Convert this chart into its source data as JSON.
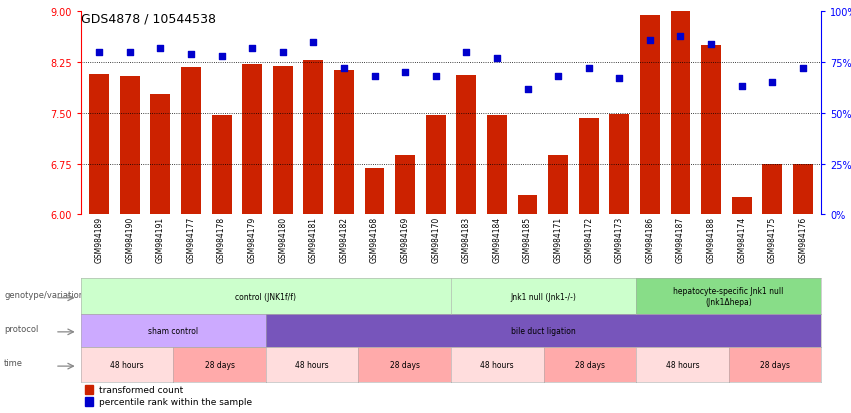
{
  "title": "GDS4878 / 10544538",
  "samples": [
    "GSM984189",
    "GSM984190",
    "GSM984191",
    "GSM984177",
    "GSM984178",
    "GSM984179",
    "GSM984180",
    "GSM984181",
    "GSM984182",
    "GSM984168",
    "GSM984169",
    "GSM984170",
    "GSM984183",
    "GSM984184",
    "GSM984185",
    "GSM984171",
    "GSM984172",
    "GSM984173",
    "GSM984186",
    "GSM984187",
    "GSM984188",
    "GSM984174",
    "GSM984175",
    "GSM984176"
  ],
  "bar_values": [
    8.08,
    8.05,
    7.78,
    8.18,
    7.47,
    8.22,
    8.2,
    8.28,
    8.14,
    6.68,
    6.88,
    7.47,
    8.06,
    7.47,
    6.28,
    6.88,
    7.42,
    7.48,
    8.95,
    9.05,
    8.5,
    6.25,
    6.75,
    6.75
  ],
  "dot_values": [
    80,
    80,
    82,
    79,
    78,
    82,
    80,
    85,
    72,
    68,
    70,
    68,
    80,
    77,
    62,
    68,
    72,
    67,
    86,
    88,
    84,
    63,
    65,
    72
  ],
  "ylim_left": [
    6,
    9
  ],
  "ylim_right": [
    0,
    100
  ],
  "yticks_left": [
    6,
    6.75,
    7.5,
    8.25,
    9
  ],
  "yticks_right": [
    0,
    25,
    50,
    75,
    100
  ],
  "hlines": [
    6.75,
    7.5,
    8.25
  ],
  "bar_color": "#cc2200",
  "dot_color": "#0000cc",
  "genotype_groups": [
    {
      "label": "control (JNK1f/f)",
      "start": 0,
      "end": 12,
      "color": "#ccffcc"
    },
    {
      "label": "Jnk1 null (Jnk1-/-)",
      "start": 12,
      "end": 18,
      "color": "#ccffcc"
    },
    {
      "label": "hepatocyte-specific Jnk1 null\n(Jnk1Δhepa)",
      "start": 18,
      "end": 24,
      "color": "#88dd88"
    }
  ],
  "protocol_groups": [
    {
      "label": "sham control",
      "start": 0,
      "end": 6,
      "color": "#ccaaff"
    },
    {
      "label": "bile duct ligation",
      "start": 6,
      "end": 24,
      "color": "#7755bb"
    }
  ],
  "time_groups": [
    {
      "label": "48 hours",
      "start": 0,
      "end": 3,
      "color": "#ffdddd"
    },
    {
      "label": "28 days",
      "start": 3,
      "end": 6,
      "color": "#ffaaaa"
    },
    {
      "label": "48 hours",
      "start": 6,
      "end": 9,
      "color": "#ffdddd"
    },
    {
      "label": "28 days",
      "start": 9,
      "end": 12,
      "color": "#ffaaaa"
    },
    {
      "label": "48 hours",
      "start": 12,
      "end": 15,
      "color": "#ffdddd"
    },
    {
      "label": "28 days",
      "start": 15,
      "end": 18,
      "color": "#ffaaaa"
    },
    {
      "label": "48 hours",
      "start": 18,
      "end": 21,
      "color": "#ffdddd"
    },
    {
      "label": "28 days",
      "start": 21,
      "end": 24,
      "color": "#ffaaaa"
    }
  ],
  "legend_items": [
    {
      "color": "#cc2200",
      "label": "transformed count"
    },
    {
      "color": "#0000cc",
      "label": "percentile rank within the sample"
    }
  ]
}
